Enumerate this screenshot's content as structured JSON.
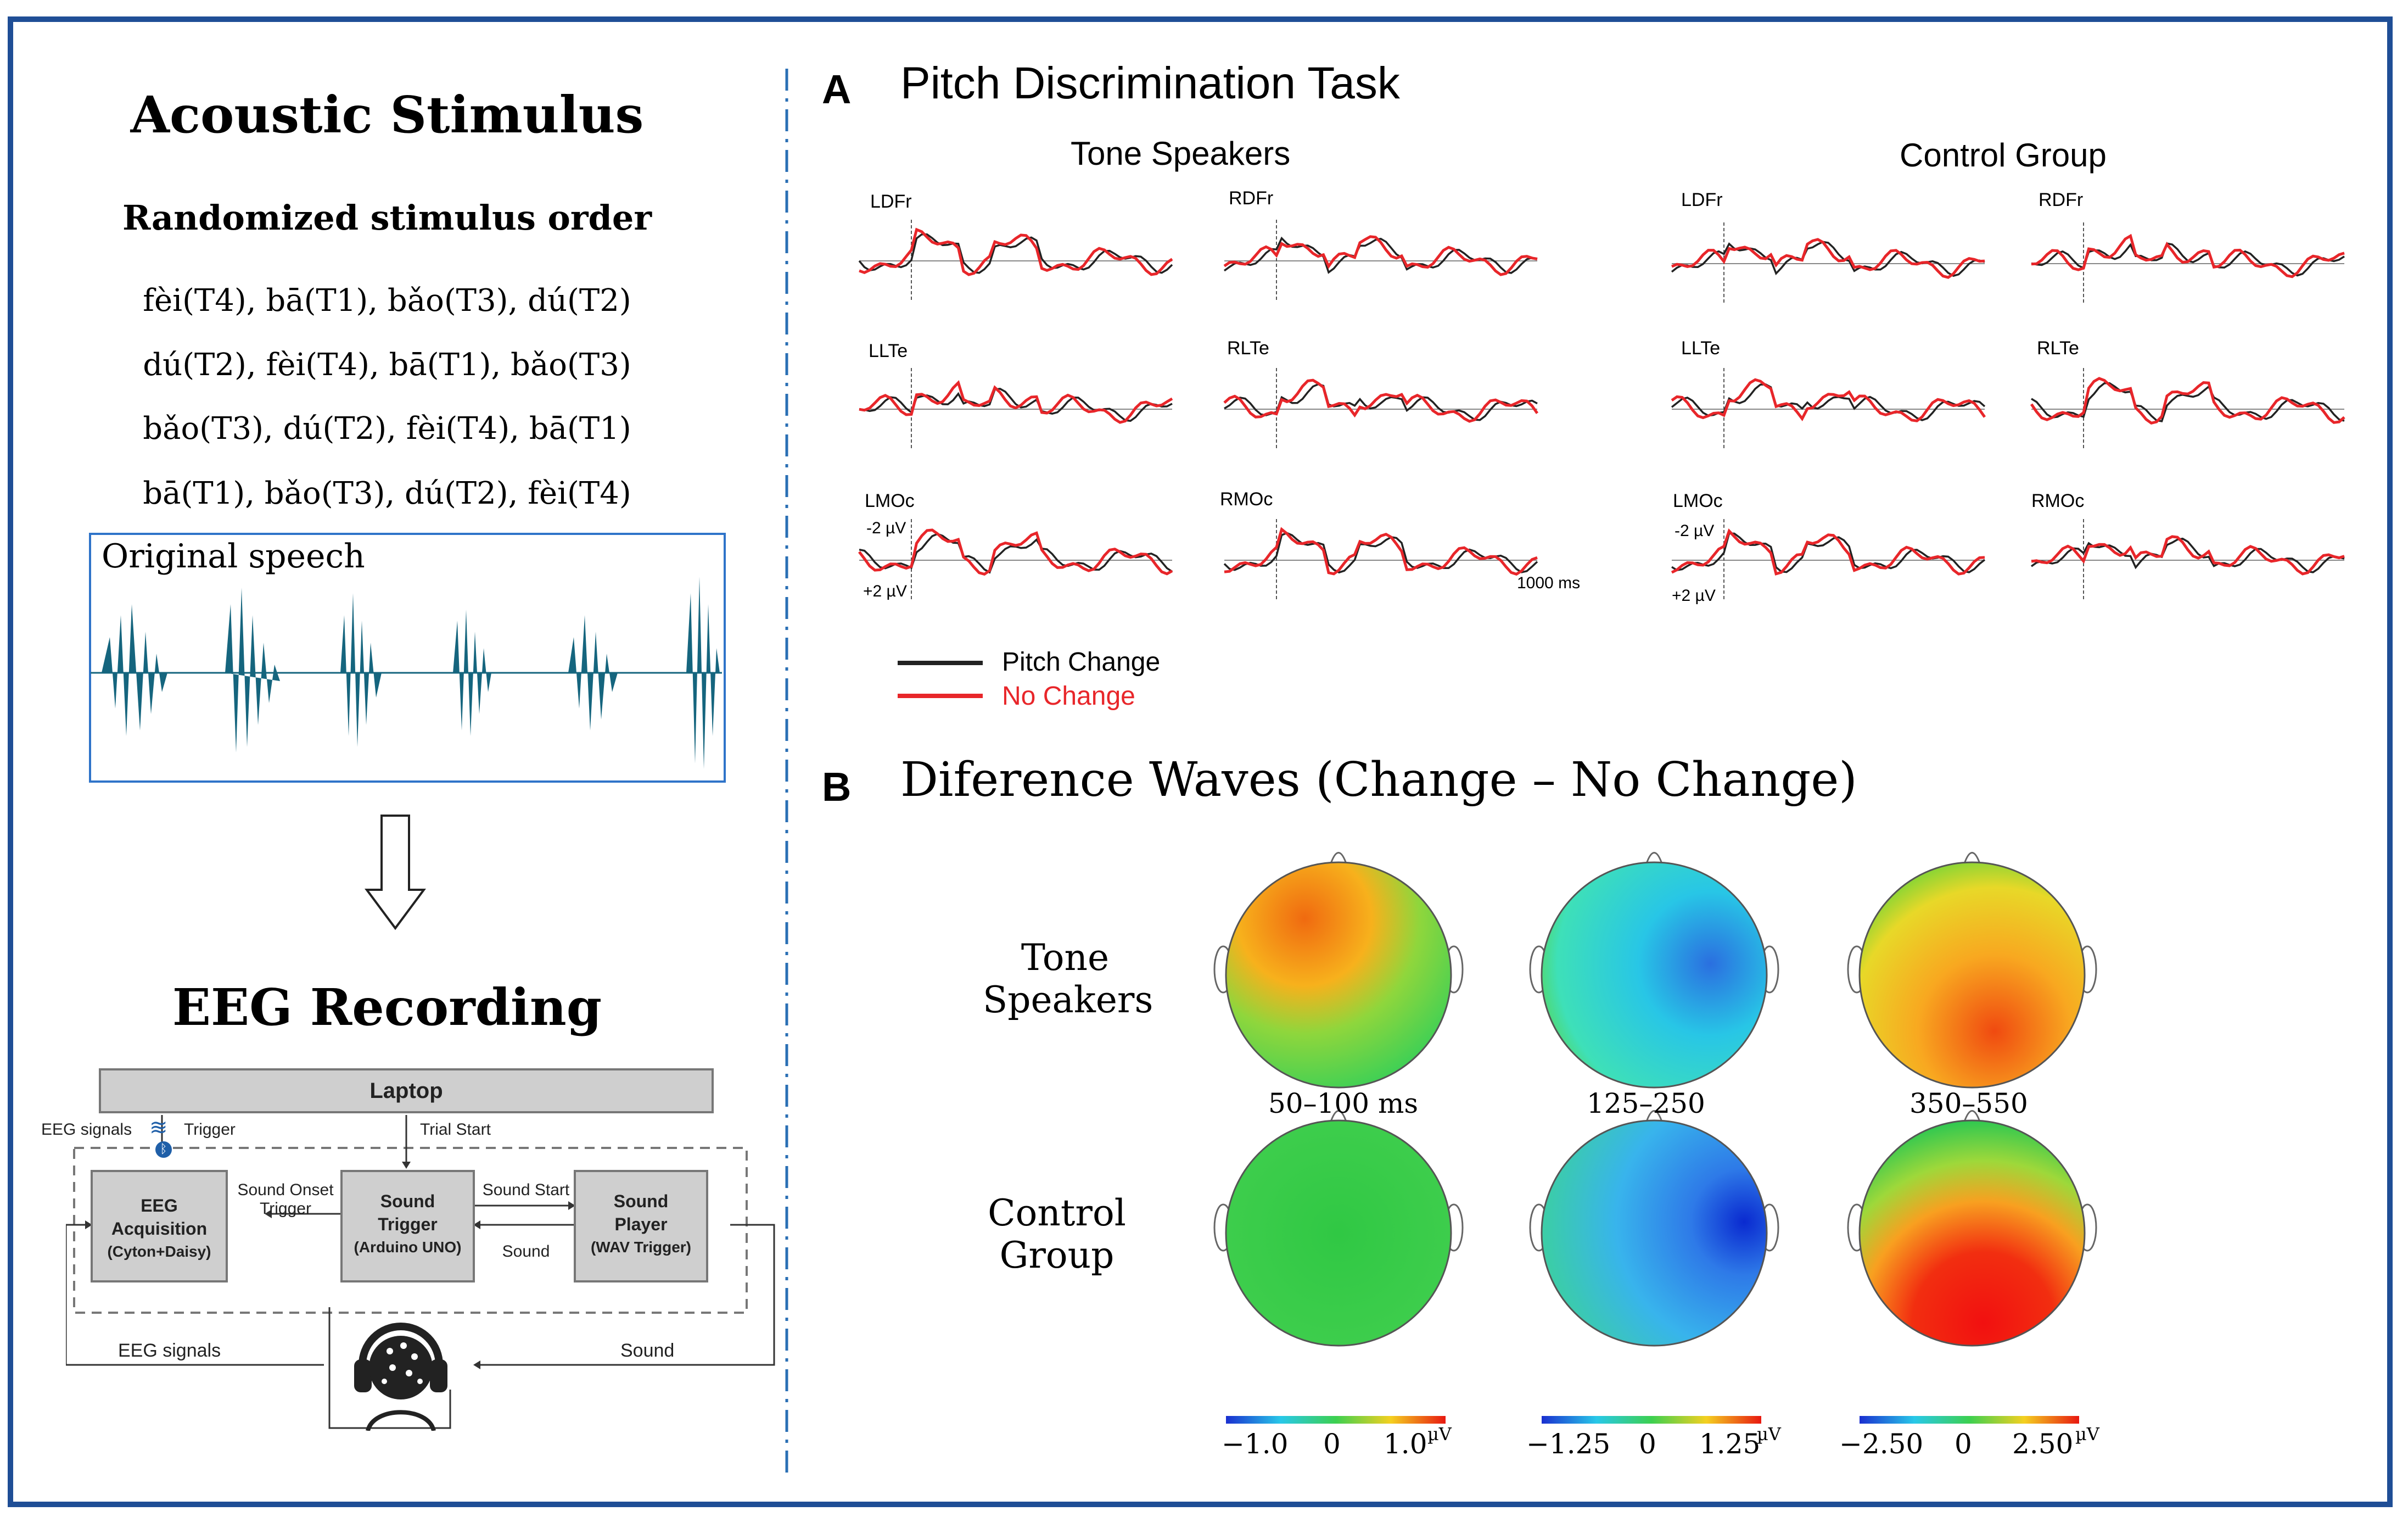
{
  "left": {
    "acoustic_title": "Acoustic Stimulus",
    "stim_subtitle": "Randomized stimulus order",
    "stim_lines": [
      "fèi(T4), bā(T1), bǎo(T3), dú(T2)",
      "dú(T2), fèi(T4), bā(T1), bǎo(T3)",
      "bǎo(T3), dú(T2), fèi(T4), bā(T1)",
      "bā(T1), bǎo(T3), dú(T2), fèi(T4)"
    ],
    "speech_label": "Original speech",
    "eeg_title": "EEG Recording",
    "diagram": {
      "laptop": "Laptop",
      "eeg_signals_top": "EEG signals",
      "trigger": "Trigger",
      "trial_start": "Trial Start",
      "eeg_acq": [
        "EEG",
        "Acquisition",
        "(Cyton+Daisy)"
      ],
      "sound_onset": [
        "Sound Onset",
        "Trigger"
      ],
      "sound_trigger": [
        "Sound",
        "Trigger",
        "(Arduino UNO)"
      ],
      "sound_start": "Sound Start",
      "sound_arrow": "Sound",
      "sound_player": [
        "Sound",
        "Player",
        "(WAV Trigger)"
      ],
      "eeg_signals_bottom": "EEG signals",
      "sound_bottom": "Sound"
    }
  },
  "panel_a": {
    "letter": "A",
    "title": "Pitch Discrimination Task",
    "groups": [
      "Tone Speakers",
      "Control Group"
    ],
    "electrodes": [
      "LDFr",
      "RDFr",
      "LLTe",
      "RLTe",
      "LMOc",
      "RMOc"
    ],
    "y_labels": [
      "-2 µV",
      "+2 µV"
    ],
    "x_label": "1000 ms",
    "legend": [
      "Pitch Change",
      "No Change"
    ],
    "colors": {
      "change": "#222222",
      "no_change": "#e8262a"
    }
  },
  "panel_b": {
    "letter": "B",
    "title": "Diference Waves (Change – No Change)",
    "row_labels": [
      [
        "Tone",
        "Speakers"
      ],
      [
        "Control",
        "Group"
      ]
    ],
    "time_windows": [
      "50–100 ms",
      "125–250",
      "350–550"
    ],
    "colorbars": [
      {
        "min": "−1.0",
        "mid": "0",
        "max": "1.0",
        "unit": "µV"
      },
      {
        "min": "−1.25",
        "mid": "0",
        "max": "1.25",
        "unit": "µV"
      },
      {
        "min": "−2.50",
        "mid": "0",
        "max": "2.50",
        "unit": "µV"
      }
    ]
  }
}
